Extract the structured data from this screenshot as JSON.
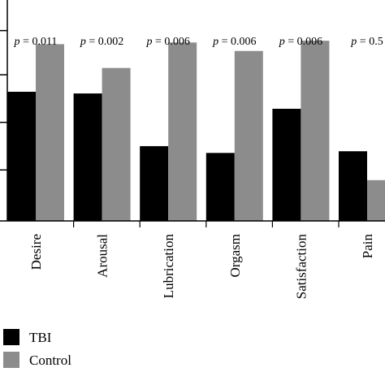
{
  "chart_data": {
    "type": "bar",
    "categories": [
      "Desire",
      "Arousal",
      "Lubrication",
      "Orgasm",
      "Satisfaction",
      "Pain"
    ],
    "p_values": [
      "p = 0.011",
      "p = 0.002",
      "p = 0.006",
      "p = 0.006",
      "p = 0.006",
      "p = 0.5"
    ],
    "series": [
      {
        "name": "TBI",
        "color": "#000000",
        "values": [
          3.8,
          3.75,
          2.2,
          2.0,
          3.3,
          2.05
        ]
      },
      {
        "name": "Control",
        "color": "#8c8c8c",
        "values": [
          5.2,
          4.5,
          5.25,
          5.0,
          5.3,
          1.2
        ]
      }
    ],
    "ylim": [
      0,
      6.5
    ],
    "grid": false,
    "legend_position": "bottom-left"
  }
}
